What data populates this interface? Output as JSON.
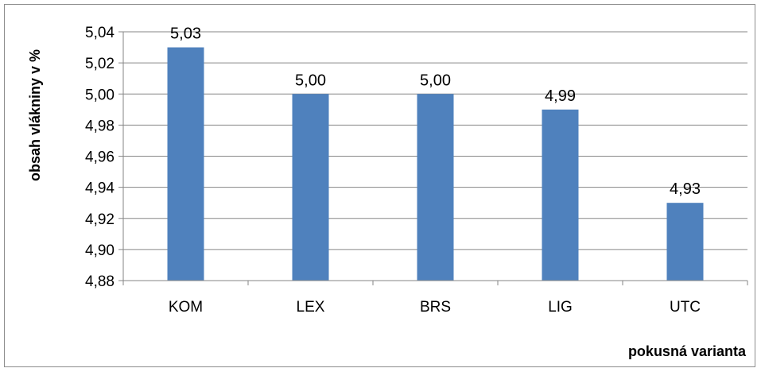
{
  "chart_data": {
    "type": "bar",
    "categories": [
      "KOM",
      "LEX",
      "BRS",
      "LIG",
      "UTC"
    ],
    "values": [
      5.03,
      5.0,
      5.0,
      4.99,
      4.93
    ],
    "data_labels": [
      "5,03",
      "5,00",
      "5,00",
      "4,99",
      "4,93"
    ],
    "xlabel": "pokusná varianta",
    "ylabel": "obsah vlákniny v %",
    "ylim": [
      4.88,
      5.04
    ],
    "yticks": [
      4.88,
      4.9,
      4.92,
      4.94,
      4.96,
      4.98,
      5.0,
      5.02,
      5.04
    ],
    "ytick_labels": [
      "4,88",
      "4,90",
      "4,92",
      "4,94",
      "4,96",
      "4,98",
      "5,00",
      "5,02",
      "5,04"
    ],
    "grid": true,
    "legend": false,
    "bar_color": "#4f81bd",
    "grid_color": "#868686"
  }
}
